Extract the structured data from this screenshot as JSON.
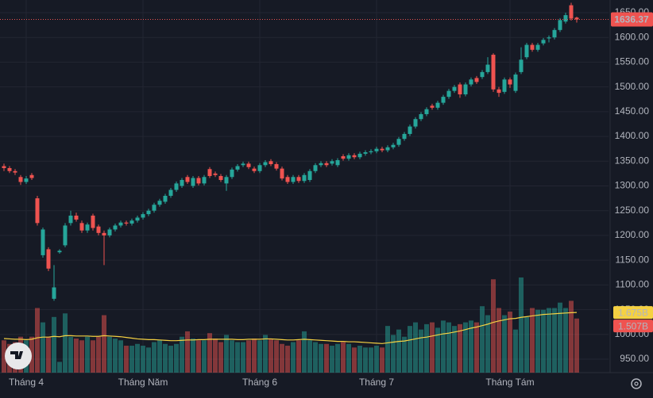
{
  "chart_data": {
    "type": "candlestick",
    "x": [
      null,
      null,
      null,
      null,
      "Tháng 4",
      null,
      null,
      null,
      null,
      null,
      null,
      null,
      null,
      null,
      null,
      null,
      null,
      null,
      null,
      null,
      null,
      null,
      null,
      null,
      null,
      "Tháng Năm",
      null,
      null,
      null,
      null,
      null,
      null,
      null,
      null,
      null,
      null,
      null,
      null,
      null,
      null,
      null,
      null,
      null,
      null,
      null,
      null,
      "Tháng 6",
      null,
      null,
      null,
      null,
      null,
      null,
      null,
      null,
      null,
      null,
      null,
      null,
      null,
      null,
      null,
      null,
      null,
      null,
      null,
      null,
      "Tháng 7",
      null,
      null,
      null,
      null,
      null,
      null,
      null,
      null,
      null,
      null,
      null,
      null,
      null,
      null,
      null,
      null,
      null,
      null,
      null,
      null,
      null,
      null,
      null,
      "Tháng Tám",
      null,
      null,
      null,
      null,
      null,
      null,
      null,
      null,
      null,
      null,
      null,
      null
    ],
    "open": [
      1340,
      1336,
      1330,
      1318,
      1308,
      1322,
      1275,
      1160,
      1172,
      1072,
      1166,
      1180,
      1225,
      1240,
      1225,
      1210,
      1240,
      1218,
      1205,
      1200,
      1212,
      1220,
      1226,
      1224,
      1230,
      1236,
      1243,
      1250,
      1262,
      1268,
      1280,
      1292,
      1300,
      1318,
      1300,
      1316,
      1305,
      1334,
      1325,
      1320,
      1305,
      1318,
      1333,
      1342,
      1345,
      1335,
      1330,
      1342,
      1350,
      1344,
      1335,
      1318,
      1308,
      1318,
      1310,
      1312,
      1330,
      1342,
      1346,
      1345,
      1342,
      1360,
      1355,
      1362,
      1358,
      1365,
      1368,
      1370,
      1375,
      1372,
      1378,
      1383,
      1395,
      1405,
      1420,
      1435,
      1445,
      1462,
      1458,
      1468,
      1480,
      1492,
      1505,
      1485,
      1505,
      1518,
      1520,
      1530,
      1565,
      1495,
      1490,
      1515,
      1492,
      1530,
      1560,
      1585,
      1575,
      1588,
      1598,
      1600,
      1615,
      1632,
      1665,
      1640
    ],
    "high": [
      1345,
      1340,
      1334,
      1322,
      1320,
      1326,
      1280,
      1216,
      1176,
      1140,
      1172,
      1225,
      1250,
      1246,
      1230,
      1226,
      1244,
      1222,
      1210,
      1216,
      1224,
      1230,
      1230,
      1234,
      1240,
      1247,
      1254,
      1266,
      1274,
      1284,
      1296,
      1309,
      1316,
      1322,
      1320,
      1320,
      1322,
      1338,
      1329,
      1324,
      1322,
      1337,
      1344,
      1349,
      1349,
      1339,
      1346,
      1352,
      1354,
      1348,
      1339,
      1322,
      1322,
      1322,
      1326,
      1334,
      1346,
      1350,
      1350,
      1354,
      1356,
      1364,
      1366,
      1366,
      1369,
      1372,
      1374,
      1379,
      1379,
      1382,
      1387,
      1399,
      1409,
      1424,
      1439,
      1449,
      1459,
      1466,
      1472,
      1484,
      1496,
      1504,
      1509,
      1509,
      1519,
      1522,
      1534,
      1560,
      1568,
      1500,
      1519,
      1519,
      1529,
      1580,
      1589,
      1589,
      1589,
      1599,
      1604,
      1619,
      1639,
      1650,
      1670,
      1642
    ],
    "low": [
      1330,
      1326,
      1322,
      1302,
      1304,
      1312,
      1220,
      1155,
      1128,
      1068,
      1163,
      1176,
      1220,
      1228,
      1205,
      1205,
      1210,
      1200,
      1140,
      1196,
      1208,
      1216,
      1220,
      1220,
      1226,
      1232,
      1239,
      1246,
      1258,
      1264,
      1276,
      1288,
      1296,
      1304,
      1296,
      1301,
      1301,
      1316,
      1318,
      1308,
      1290,
      1314,
      1329,
      1338,
      1334,
      1326,
      1326,
      1338,
      1340,
      1331,
      1311,
      1304,
      1304,
      1306,
      1306,
      1308,
      1326,
      1338,
      1338,
      1341,
      1338,
      1351,
      1351,
      1354,
      1354,
      1361,
      1364,
      1366,
      1368,
      1368,
      1374,
      1379,
      1391,
      1401,
      1416,
      1431,
      1441,
      1454,
      1454,
      1464,
      1476,
      1488,
      1478,
      1481,
      1501,
      1506,
      1516,
      1526,
      1490,
      1480,
      1486,
      1498,
      1488,
      1526,
      1556,
      1571,
      1571,
      1584,
      1590,
      1596,
      1611,
      1628,
      1634,
      1630
    ],
    "close": [
      1336,
      1330,
      1327,
      1308,
      1315,
      1316,
      1225,
      1212,
      1133,
      1095,
      1169,
      1220,
      1240,
      1232,
      1210,
      1222,
      1215,
      1205,
      1200,
      1212,
      1220,
      1226,
      1224,
      1230,
      1236,
      1243,
      1250,
      1262,
      1270,
      1280,
      1292,
      1305,
      1312,
      1308,
      1316,
      1305,
      1318,
      1320,
      1322,
      1312,
      1318,
      1333,
      1340,
      1345,
      1338,
      1330,
      1342,
      1348,
      1344,
      1335,
      1315,
      1308,
      1318,
      1310,
      1322,
      1330,
      1342,
      1346,
      1342,
      1350,
      1352,
      1355,
      1362,
      1358,
      1365,
      1368,
      1370,
      1375,
      1372,
      1378,
      1383,
      1395,
      1405,
      1420,
      1435,
      1445,
      1455,
      1458,
      1468,
      1480,
      1492,
      1500,
      1485,
      1505,
      1515,
      1510,
      1530,
      1545,
      1495,
      1488,
      1515,
      1505,
      1525,
      1555,
      1585,
      1575,
      1585,
      1595,
      1600,
      1615,
      1635,
      1645,
      1638,
      1636.37
    ],
    "up_color": "#26a69a",
    "down_color": "#ef5350",
    "ylim": [
      922.8,
      1675.6
    ],
    "yticks": [
      {
        "value": 950,
        "label": "950.00"
      },
      {
        "value": 1000,
        "label": "1000.00"
      },
      {
        "value": 1050,
        "label": "1050.00"
      },
      {
        "value": 1100,
        "label": "1100.00"
      },
      {
        "value": 1150,
        "label": "1150.00"
      },
      {
        "value": 1200,
        "label": "1200.00"
      },
      {
        "value": 1250,
        "label": "1250.00"
      },
      {
        "value": 1300,
        "label": "1300.00"
      },
      {
        "value": 1350,
        "label": "1350.00"
      },
      {
        "value": 1400,
        "label": "1400.00"
      },
      {
        "value": 1450,
        "label": "1450.00"
      },
      {
        "value": 1500,
        "label": "1500.00"
      },
      {
        "value": 1550,
        "label": "1550.00"
      },
      {
        "value": 1600,
        "label": "1600.00"
      },
      {
        "value": 1650,
        "label": "1650.00"
      }
    ],
    "grid": true,
    "volume": {
      "values": [
        0.9,
        0.8,
        0.85,
        1.0,
        0.9,
        1.0,
        1.8,
        1.4,
        1.0,
        1.55,
        0.3,
        1.65,
        1.0,
        0.95,
        0.9,
        1.0,
        0.9,
        1.0,
        1.6,
        1.0,
        0.95,
        0.9,
        0.75,
        0.75,
        0.8,
        0.75,
        0.7,
        0.85,
        0.9,
        0.8,
        0.75,
        0.8,
        1.0,
        1.15,
        0.95,
        0.9,
        0.9,
        1.1,
        0.95,
        0.85,
        1.05,
        0.9,
        0.85,
        0.85,
        0.9,
        0.95,
        0.9,
        1.05,
        0.95,
        0.9,
        0.8,
        0.75,
        0.85,
        0.9,
        1.15,
        0.9,
        0.85,
        0.8,
        0.8,
        0.75,
        0.8,
        0.85,
        0.8,
        0.7,
        0.75,
        0.7,
        0.7,
        0.75,
        0.7,
        1.3,
        1.05,
        1.2,
        1.0,
        1.3,
        1.4,
        1.2,
        1.35,
        1.4,
        1.25,
        1.45,
        1.4,
        1.3,
        1.35,
        1.4,
        1.45,
        1.4,
        1.85,
        1.6,
        2.6,
        1.8,
        1.6,
        1.7,
        1.2,
        2.65,
        1.55,
        1.8,
        1.75,
        1.75,
        1.8,
        1.8,
        1.95,
        1.8,
        2.0,
        1.507
      ],
      "last_value_label": "1.507B",
      "ma": [
        0.95,
        0.94,
        0.93,
        0.93,
        0.92,
        0.93,
        0.97,
        0.99,
        0.99,
        1.01,
        1.0,
        1.03,
        1.03,
        1.02,
        1.02,
        1.02,
        1.01,
        1.01,
        1.03,
        1.02,
        1.01,
        1.0,
        0.98,
        0.96,
        0.94,
        0.93,
        0.92,
        0.92,
        0.91,
        0.9,
        0.89,
        0.89,
        0.9,
        0.91,
        0.91,
        0.92,
        0.92,
        0.93,
        0.93,
        0.93,
        0.93,
        0.93,
        0.92,
        0.92,
        0.93,
        0.93,
        0.93,
        0.94,
        0.94,
        0.93,
        0.92,
        0.91,
        0.91,
        0.92,
        0.93,
        0.92,
        0.91,
        0.9,
        0.89,
        0.88,
        0.87,
        0.87,
        0.86,
        0.86,
        0.85,
        0.84,
        0.83,
        0.82,
        0.81,
        0.83,
        0.85,
        0.87,
        0.88,
        0.91,
        0.94,
        0.97,
        0.99,
        1.02,
        1.05,
        1.08,
        1.1,
        1.13,
        1.16,
        1.2,
        1.24,
        1.27,
        1.31,
        1.35,
        1.4,
        1.44,
        1.47,
        1.5,
        1.51,
        1.54,
        1.56,
        1.58,
        1.6,
        1.62,
        1.63,
        1.64,
        1.65,
        1.66,
        1.67,
        1.675
      ],
      "ma_last_label": "1.675B",
      "ma_color": "#f5d142"
    }
  }
}
